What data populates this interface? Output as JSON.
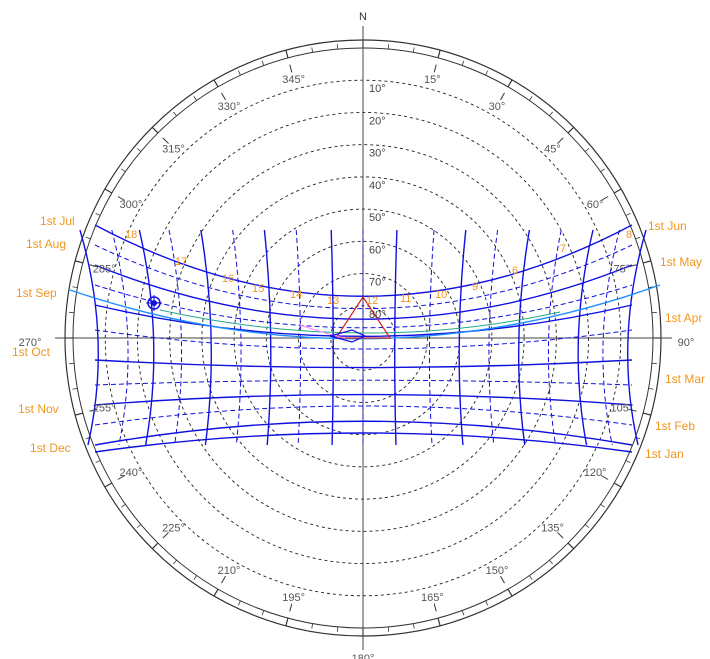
{
  "north_label": "N",
  "colors": {
    "ring": "#333333",
    "grid": "#222222",
    "azimuth_text": "#555555",
    "altitude_text": "#444444",
    "month_text": "#f0961e",
    "hour_text": "#f0961e",
    "sun_path": "#1010e0",
    "current_day": "#1e90ff",
    "marker_red": "#d02020",
    "marker_pink": "#ff80ff"
  },
  "azimuth_labels": [
    "15°",
    "30°",
    "45°",
    "60°",
    "75°",
    "90°",
    "105°",
    "120°",
    "135°",
    "150°",
    "165°",
    "180°",
    "195°",
    "210°",
    "225°",
    "240°",
    "255°",
    "270°",
    "285°",
    "300°",
    "315°",
    "330°",
    "345°"
  ],
  "altitude_labels": [
    "10°",
    "20°",
    "30°",
    "40°",
    "50°",
    "60°",
    "70°",
    "80°"
  ],
  "month_labels_left": [
    "1st Jul",
    "1st Aug",
    "1st Sep",
    "1st Oct",
    "1st Nov",
    "1st Dec"
  ],
  "month_labels_right": [
    "1st Jun",
    "1st May",
    "1st Apr",
    "1st Mar",
    "1st Feb",
    "1st Jan"
  ],
  "hour_labels": [
    "6",
    "7",
    "8",
    "9",
    "10",
    "11",
    "12",
    "13",
    "14",
    "15",
    "16",
    "17",
    "18"
  ]
}
